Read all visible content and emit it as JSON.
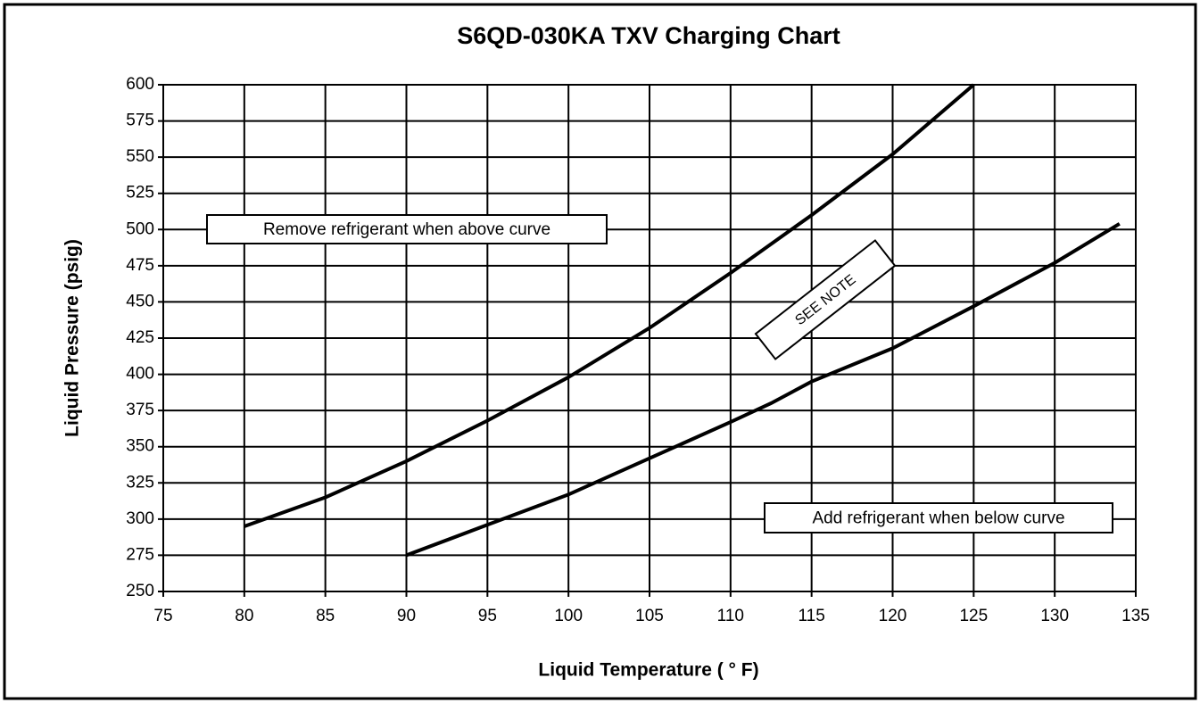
{
  "chart_data": {
    "type": "line",
    "title": "S6QD-030KA TXV Charging Chart",
    "x_label": "Liquid Temperature  ( ° F)",
    "y_label": "Liquid Pressure  (psig)",
    "xlim": [
      75,
      135
    ],
    "ylim": [
      250,
      600
    ],
    "xticks": [
      75,
      80,
      85,
      90,
      95,
      100,
      105,
      110,
      115,
      120,
      125,
      130,
      135
    ],
    "yticks": [
      250,
      275,
      300,
      325,
      350,
      375,
      400,
      425,
      450,
      475,
      500,
      525,
      550,
      575,
      600
    ],
    "grid": true,
    "series": [
      {
        "color": "#000000",
        "x": [
          80,
          85,
          90,
          95,
          100,
          105,
          110,
          115,
          120,
          125
        ],
        "values": [
          295,
          315,
          340,
          368,
          398,
          432,
          470,
          510,
          552,
          600
        ]
      },
      {
        "color": "#000000",
        "x": [
          90,
          95,
          100,
          105,
          110,
          112.5,
          115,
          120,
          125,
          130,
          134
        ],
        "values": [
          275,
          296,
          317,
          342,
          367,
          380,
          395,
          418,
          447,
          477,
          504
        ]
      }
    ],
    "annotations": [
      "Remove refrigerant when above curve",
      "SEE NOTE",
      "Add refrigerant when below curve"
    ]
  }
}
